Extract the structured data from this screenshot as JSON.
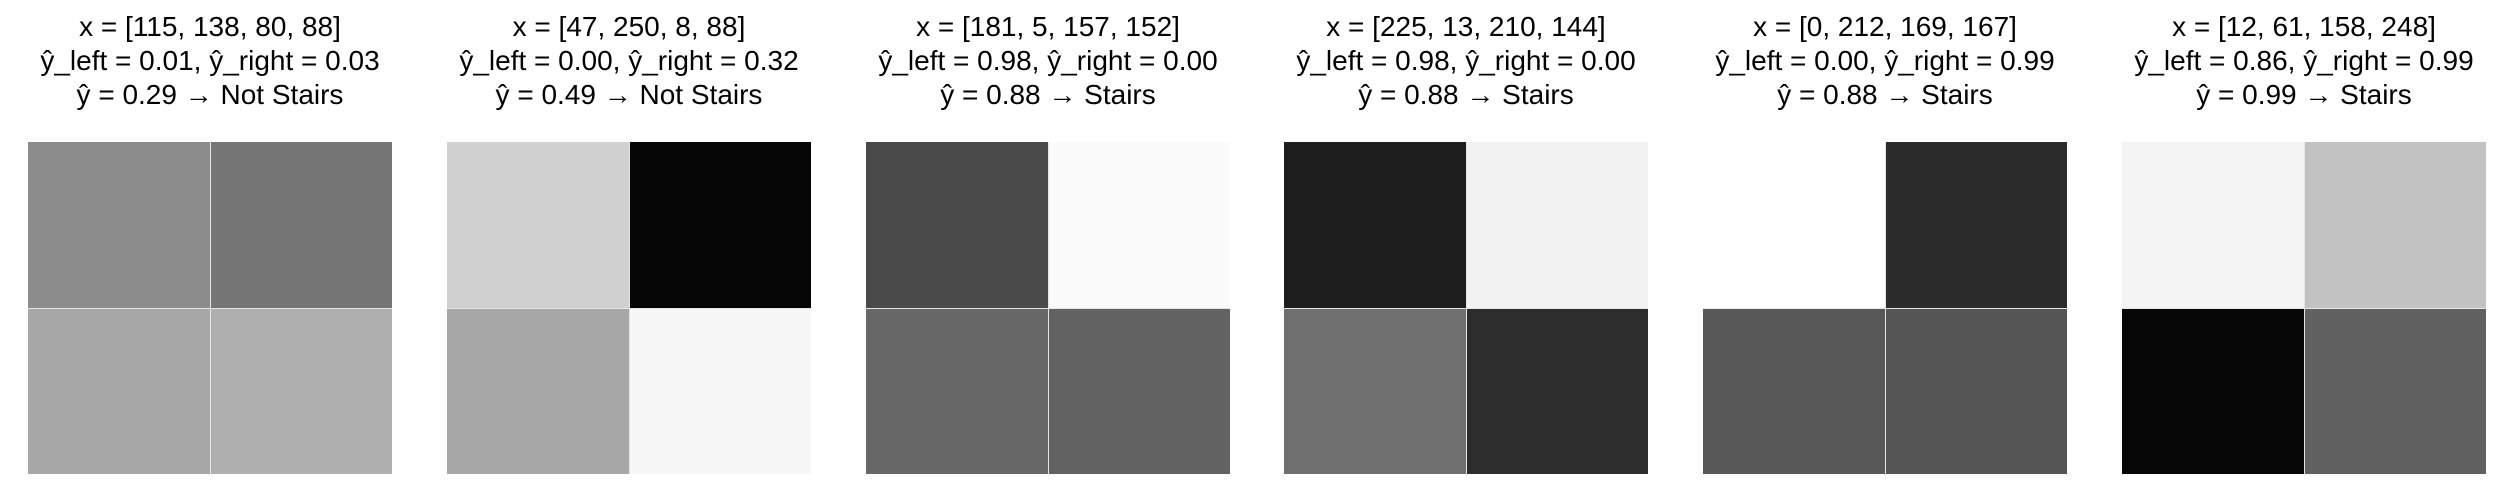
{
  "panels": [
    {
      "x_label": "x = [115, 138, 80, 88]",
      "y_lr_label": "ŷ_left = 0.01, ŷ_right = 0.03",
      "y_label": "ŷ = 0.29 → Not Stairs",
      "pixels": [
        115,
        138,
        80,
        88
      ]
    },
    {
      "x_label": "x = [47, 250, 8, 88]",
      "y_lr_label": "ŷ_left = 0.00, ŷ_right = 0.32",
      "y_label": "ŷ = 0.49 → Not Stairs",
      "pixels": [
        47,
        250,
        8,
        88
      ]
    },
    {
      "x_label": "x = [181, 5, 157, 152]",
      "y_lr_label": "ŷ_left = 0.98, ŷ_right = 0.00",
      "y_label": "ŷ = 0.88 → Stairs",
      "pixels": [
        181,
        5,
        157,
        152
      ]
    },
    {
      "x_label": "x = [225, 13, 210, 144]",
      "y_lr_label": "ŷ_left = 0.98, ŷ_right = 0.00",
      "y_label": "ŷ = 0.88 → Stairs",
      "pixels": [
        225,
        13,
        210,
        144
      ]
    },
    {
      "x_label": "x = [0, 212, 169, 167]",
      "y_lr_label": "ŷ_left = 0.00, ŷ_right = 0.99",
      "y_label": "ŷ = 0.88 → Stairs",
      "pixels": [
        0,
        212,
        169,
        167
      ]
    },
    {
      "x_label": "x = [12, 61, 158, 248]",
      "y_lr_label": "ŷ_left = 0.86, ŷ_right = 0.99",
      "y_label": "ŷ = 0.99 → Stairs",
      "pixels": [
        12,
        61,
        158,
        248
      ]
    }
  ]
}
